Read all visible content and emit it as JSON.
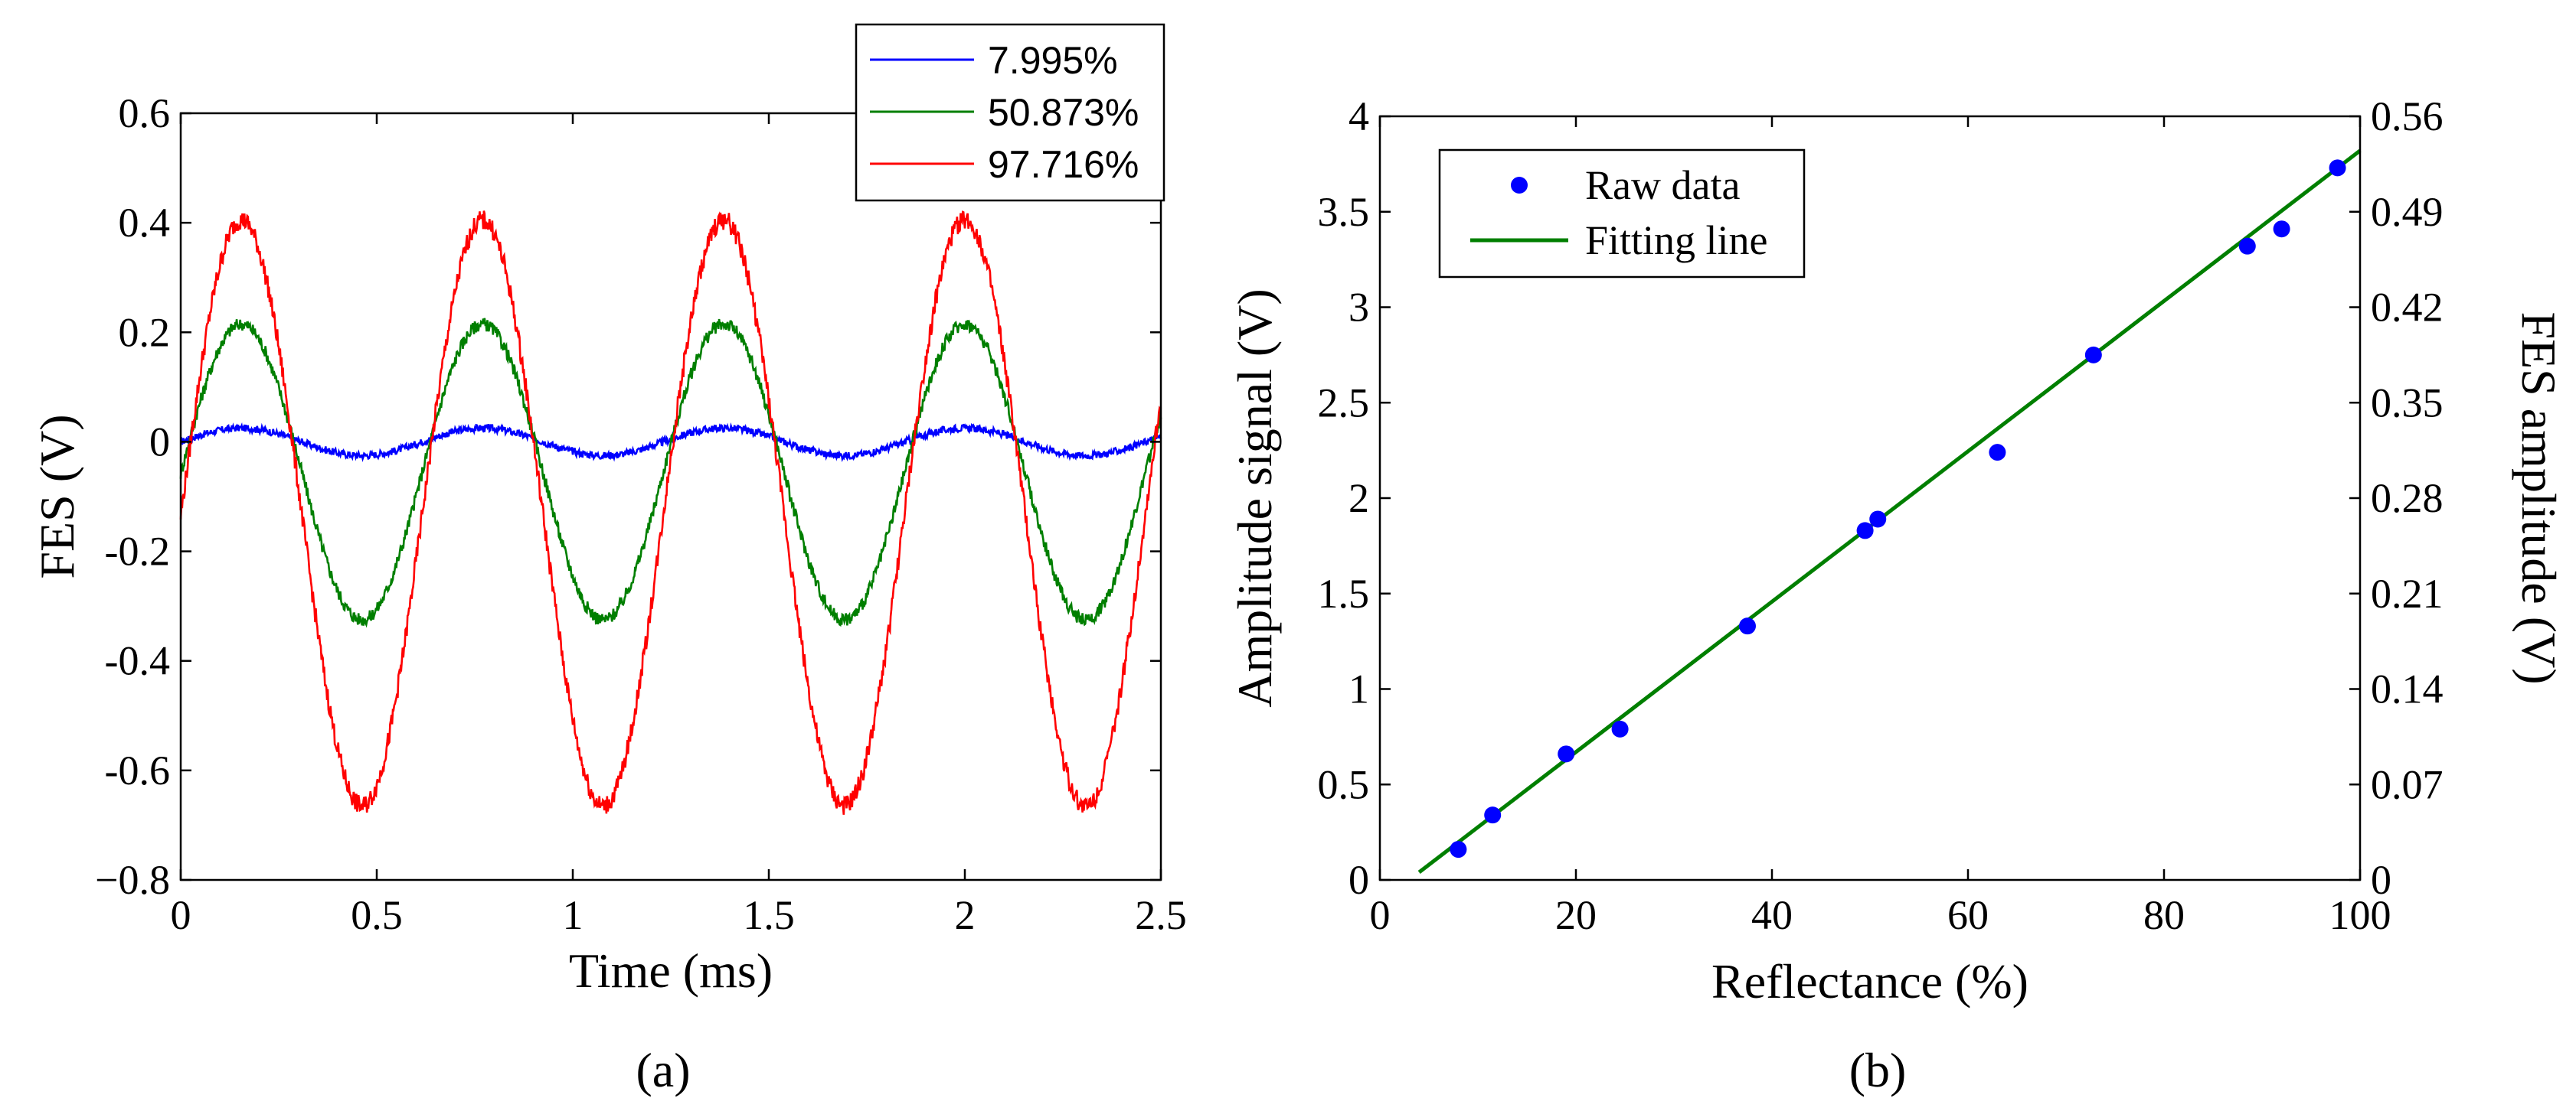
{
  "chart_data": [
    {
      "type": "line",
      "panel_label": "(a)",
      "title": "",
      "xlabel": "Time (ms)",
      "ylabel": "FES (V)",
      "xlim": [
        0,
        2.5
      ],
      "ylim": [
        -0.8,
        0.6
      ],
      "xticks": [
        0,
        0.5,
        1,
        1.5,
        2,
        2.5
      ],
      "xtick_labels": [
        "0",
        "0.5",
        "1",
        "1.5",
        "2",
        "2.5"
      ],
      "yticks": [
        -0.8,
        -0.6,
        -0.4,
        -0.2,
        0,
        0.2,
        0.4,
        0.6
      ],
      "ytick_labels": [
        "−0.8",
        "-0.6",
        "-0.4",
        "-0.2",
        "0",
        "0.2",
        "0.4",
        "0.6"
      ],
      "grid": false,
      "legend_position": "top-right",
      "waveform": {
        "period_ms": 0.615,
        "peak_time_ms": 0.155
      },
      "series": [
        {
          "name": "7.995%",
          "color": "#0000ff",
          "max": 0.025,
          "min": -0.025
        },
        {
          "name": "50.873%",
          "color": "#007f00",
          "max": 0.215,
          "min": -0.325
        },
        {
          "name": "97.716%",
          "color": "#ff0000",
          "max": 0.405,
          "min": -0.665
        }
      ]
    },
    {
      "type": "scatter",
      "panel_label": "(b)",
      "title": "",
      "xlabel": "Reflectance (%)",
      "ylabel": "Amplitude signal (V)",
      "y2label": "FES amplitude (V)",
      "xlim": [
        0,
        100
      ],
      "ylim": [
        0,
        4
      ],
      "y2lim": [
        0,
        0.56
      ],
      "xticks": [
        0,
        20,
        40,
        60,
        80,
        100
      ],
      "xtick_labels": [
        "0",
        "20",
        "40",
        "60",
        "80",
        "100"
      ],
      "yticks": [
        0,
        0.5,
        1,
        1.5,
        2,
        2.5,
        3,
        3.5,
        4
      ],
      "ytick_labels": [
        "0",
        "0.5",
        "1",
        "1.5",
        "2",
        "2.5",
        "3",
        "3.5",
        "4"
      ],
      "y2ticks": [
        0,
        0.07,
        0.14,
        0.21,
        0.28,
        0.35,
        0.42,
        0.49,
        0.56
      ],
      "y2tick_labels": [
        "0",
        "0.07",
        "0.14",
        "0.21",
        "0.28",
        "0.35",
        "0.42",
        "0.49",
        "0.56"
      ],
      "grid": false,
      "legend_position": "top-left",
      "series": [
        {
          "name": "Raw data",
          "kind": "scatter",
          "color": "#0000ff",
          "x": [
            8,
            11.5,
            19,
            24.5,
            37.5,
            49.5,
            50.8,
            63,
            72.8,
            88.5,
            92,
            97.7
          ],
          "y": [
            0.16,
            0.34,
            0.66,
            0.79,
            1.33,
            1.83,
            1.89,
            2.24,
            2.75,
            3.32,
            3.41,
            3.73
          ]
        },
        {
          "name": "Fitting line",
          "kind": "line",
          "color": "#007f00",
          "x": [
            4,
            100
          ],
          "y": [
            0.04,
            3.82
          ]
        }
      ]
    }
  ]
}
